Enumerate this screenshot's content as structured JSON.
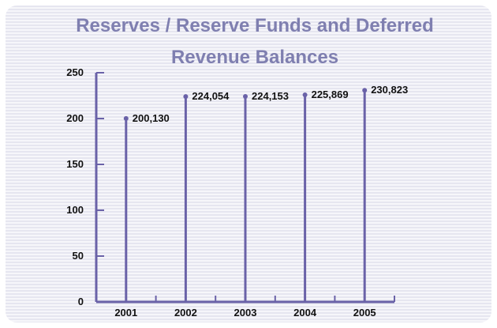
{
  "chart_data": {
    "type": "bar",
    "title_lines": [
      "Reserves / Reserve Funds and Deferred",
      "Revenue Balances"
    ],
    "categories": [
      "2001",
      "2002",
      "2003",
      "2004",
      "2005"
    ],
    "values": [
      200.13,
      224.054,
      224.153,
      225.869,
      230.823
    ],
    "data_labels": [
      "200,130",
      "224,054",
      "224,153",
      "225,869",
      "230,823"
    ],
    "yticks": [
      "0",
      "50",
      "100",
      "150",
      "200",
      "250"
    ],
    "ylim": [
      0,
      250
    ],
    "grid": false,
    "colors": {
      "mark": "#6a62a8",
      "title": "#7f7fb0",
      "background": "#e8e8f1"
    }
  }
}
